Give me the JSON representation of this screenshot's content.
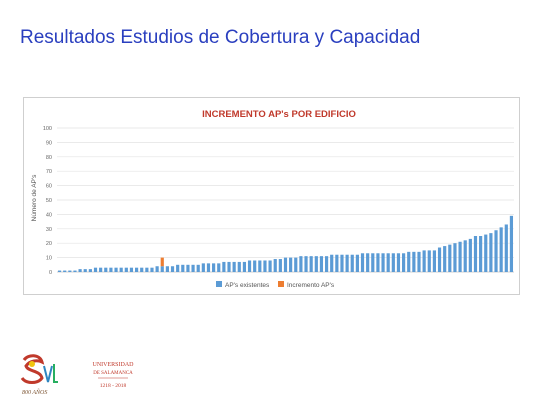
{
  "slide": {
    "title": "Resultados Estudios de Cobertura y Capacidad"
  },
  "footer": {
    "university_name_line1": "UNIVERSIDAD",
    "university_name_line2": "DE SALAMANCA",
    "anniversary_years": "1218 - 2018",
    "logo_motto": "800 AÑOS"
  },
  "colors": {
    "title": "#2a3fbf",
    "chart_title": "#c0392b",
    "series_existing": "#5b9bd5",
    "series_increment": "#ed7d31"
  },
  "chart_data": {
    "type": "bar",
    "stacked": true,
    "title": "INCREMENTO AP's POR EDIFICIO",
    "ylabel": "Número de AP's",
    "xlabel": "",
    "ylim": [
      0,
      100
    ],
    "yticks": [
      0,
      10,
      20,
      30,
      40,
      50,
      60,
      70,
      80,
      90,
      100
    ],
    "grid": true,
    "legend_position": "bottom",
    "series": [
      {
        "name": "AP's existentes",
        "values": [
          1,
          1,
          1,
          1,
          2,
          2,
          2,
          3,
          3,
          3,
          3,
          3,
          3,
          3,
          3,
          3,
          3,
          3,
          3,
          4,
          4,
          4,
          4,
          5,
          5,
          5,
          5,
          5,
          6,
          6,
          6,
          6,
          7,
          7,
          7,
          7,
          7,
          8,
          8,
          8,
          8,
          8,
          9,
          9,
          10,
          10,
          10,
          11,
          11,
          11,
          11,
          11,
          11,
          12,
          12,
          12,
          12,
          12,
          12,
          13,
          13,
          13,
          13,
          13,
          13,
          13,
          13,
          13,
          14,
          14,
          14,
          15,
          15,
          15,
          17,
          18,
          19,
          20,
          21,
          22,
          23,
          25,
          25,
          26,
          27,
          29,
          31,
          33,
          39
        ]
      },
      {
        "name": "Incremento AP's",
        "values": [
          0,
          0,
          0,
          0,
          0,
          0,
          0,
          0,
          0,
          0,
          0,
          0,
          0,
          0,
          0,
          0,
          0,
          0,
          0,
          0,
          6,
          0,
          0,
          0,
          0,
          0,
          0,
          0,
          0,
          0,
          0,
          0,
          0,
          0,
          0,
          0,
          0,
          0,
          0,
          0,
          0,
          0,
          0,
          0,
          0,
          0,
          0,
          0,
          0,
          0,
          0,
          0,
          0,
          0,
          0,
          0,
          0,
          0,
          0,
          0,
          0,
          0,
          0,
          0,
          0,
          0,
          0,
          0,
          0,
          0,
          0,
          0,
          0,
          0,
          0,
          0,
          0,
          0,
          0,
          0,
          0,
          0,
          0,
          0,
          0,
          0,
          0,
          0,
          0
        ]
      }
    ]
  }
}
